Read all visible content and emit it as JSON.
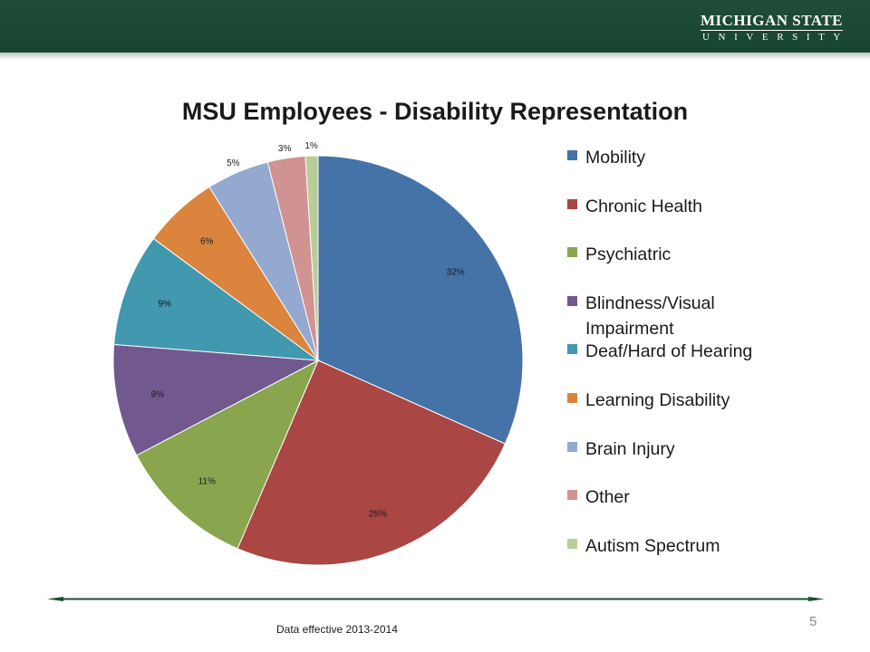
{
  "header": {
    "logo_line1": "MICHIGAN STATE",
    "logo_line2": "UNIVERSITY"
  },
  "chart_data": {
    "type": "pie",
    "title": "MSU Employees - Disability Representation",
    "categories": [
      "Mobility",
      "Chronic Health",
      "Psychiatric",
      "Blindness/Visual Impairment",
      "Deaf/Hard of Hearing",
      "Learning Disability",
      "Brain Injury",
      "Other",
      "Autism Spectrum"
    ],
    "values": [
      32,
      25,
      11,
      9,
      9,
      6,
      5,
      3,
      1
    ],
    "value_labels": [
      "32%",
      "25%",
      "11%",
      "9%",
      "9%",
      "6%",
      "5%",
      "3%",
      "1%"
    ],
    "colors": [
      "#4572a7",
      "#aa4643",
      "#89a54e",
      "#71588f",
      "#4198af",
      "#db843d",
      "#93a9cf",
      "#d19392",
      "#b9cd96"
    ],
    "legend_position": "right"
  },
  "footer": {
    "note": "Data effective 2013-2014",
    "page_number": "5"
  }
}
